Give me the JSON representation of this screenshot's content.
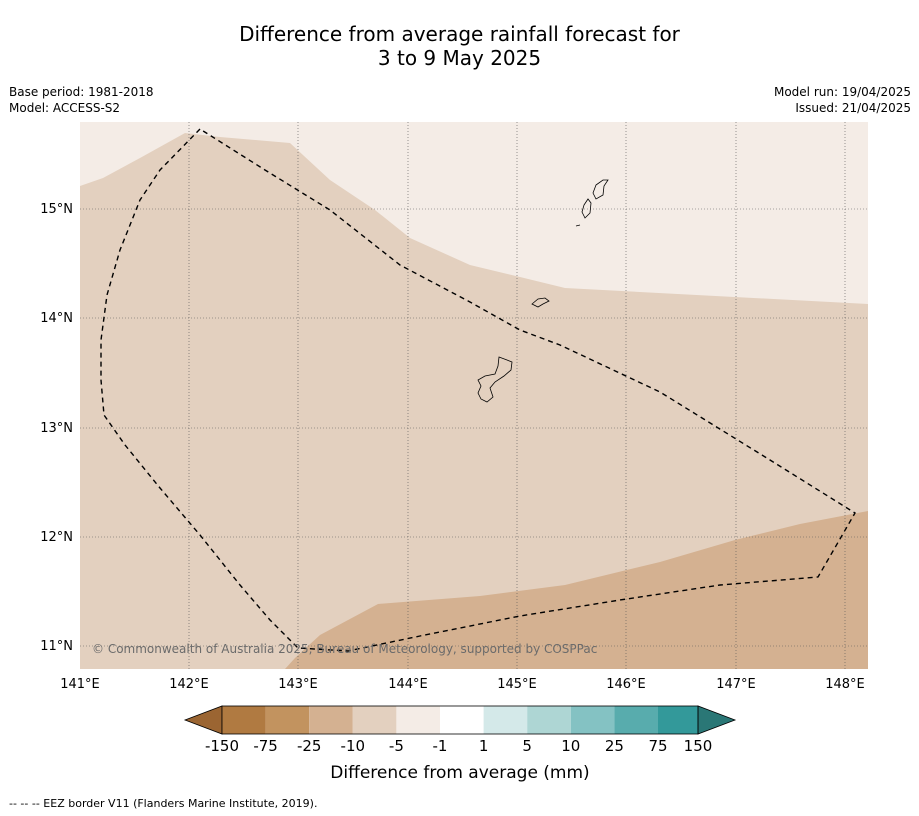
{
  "title": {
    "line1": "Difference from average rainfall forecast for",
    "line2": "3 to 9 May 2025"
  },
  "meta_left": {
    "base_period": "Base period: 1981-2018",
    "model": "Model: ACCESS-S2"
  },
  "meta_right": {
    "model_run": "Model run: 19/04/2025",
    "issued": "Issued: 21/04/2025"
  },
  "map": {
    "lon_labels": [
      "141°E",
      "142°E",
      "143°E",
      "144°E",
      "145°E",
      "146°E",
      "147°E",
      "148°E"
    ],
    "lat_labels": [
      "15°N",
      "14°N",
      "13°N",
      "12°N",
      "11°N"
    ],
    "copyright": "© Commonwealth of Australia 2025, Bureau of Meteorology, supported by COSPPac"
  },
  "colorbar": {
    "title": "Difference from average (mm)",
    "tick_labels": [
      "-150",
      "-75",
      "-25",
      "-10",
      "-5",
      "-1",
      "1",
      "5",
      "10",
      "25",
      "75",
      "150"
    ],
    "colors": [
      "#9b6532",
      "#b07a41",
      "#c2935f",
      "#d4b191",
      "#e3d0bf",
      "#f4ece6",
      "#ffffff",
      "#d4e9e9",
      "#aed6d4",
      "#84c2c3",
      "#58acad",
      "#33999a",
      "#2a7776"
    ]
  },
  "legend_note": "--  --  -- EEZ border V11 (Flanders Marine Institute, 2019)."
}
